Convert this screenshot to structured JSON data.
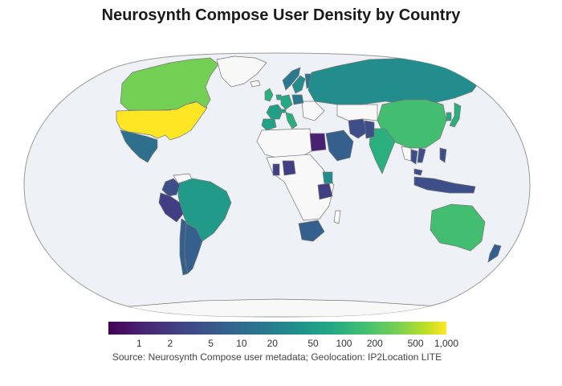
{
  "title": "Neurosynth Compose User Density by Country",
  "source": "Source: Neurosynth Compose user metadata; Geolocation: IP2Location LITE",
  "colorbar": {
    "scale": "log",
    "colorscale": "viridis",
    "range": [
      0.5,
      1000
    ],
    "ticks": [
      "1",
      "2",
      "5",
      "10",
      "20",
      "50",
      "100",
      "200",
      "500",
      "1,000"
    ]
  },
  "colors": {
    "ocean": "#eef1f6",
    "no_data": "#f8f8f8",
    "border": "#777777",
    "low": "#440154",
    "high": "#fde725"
  },
  "chart_data": {
    "type": "choropleth",
    "projection": "natural-earth",
    "value_scale": "log",
    "regions": [
      {
        "name": "United States",
        "value": 1000
      },
      {
        "name": "Canada",
        "value": 200
      },
      {
        "name": "Mexico",
        "value": 8
      },
      {
        "name": "Brazil",
        "value": 30
      },
      {
        "name": "Colombia",
        "value": 3
      },
      {
        "name": "Peru",
        "value": 2
      },
      {
        "name": "Argentina",
        "value": 5
      },
      {
        "name": "Chile",
        "value": 5
      },
      {
        "name": "United Kingdom",
        "value": 60
      },
      {
        "name": "Germany",
        "value": 50
      },
      {
        "name": "France",
        "value": 35
      },
      {
        "name": "Spain",
        "value": 40
      },
      {
        "name": "Italy",
        "value": 60
      },
      {
        "name": "Netherlands",
        "value": 50
      },
      {
        "name": "Switzerland",
        "value": 40
      },
      {
        "name": "Sweden",
        "value": 20
      },
      {
        "name": "Norway",
        "value": 10
      },
      {
        "name": "Finland",
        "value": 10
      },
      {
        "name": "Poland",
        "value": 10
      },
      {
        "name": "Russia",
        "value": 20
      },
      {
        "name": "China",
        "value": 100
      },
      {
        "name": "Japan",
        "value": 60
      },
      {
        "name": "South Korea",
        "value": 50
      },
      {
        "name": "India",
        "value": 60
      },
      {
        "name": "Australia",
        "value": 100
      },
      {
        "name": "New Zealand",
        "value": 5
      },
      {
        "name": "Saudi Arabia",
        "value": 5
      },
      {
        "name": "Egypt",
        "value": 1
      },
      {
        "name": "Nigeria",
        "value": 2
      },
      {
        "name": "Ghana",
        "value": 2
      },
      {
        "name": "Tanzania",
        "value": 2
      },
      {
        "name": "Kenya",
        "value": 20
      },
      {
        "name": "South Africa",
        "value": 5
      },
      {
        "name": "Iran",
        "value": 3
      },
      {
        "name": "Indonesia",
        "value": 3
      },
      {
        "name": "Philippines",
        "value": 3
      },
      {
        "name": "Thailand",
        "value": 3
      },
      {
        "name": "Malaysia",
        "value": 3
      },
      {
        "name": "Vietnam",
        "value": 3
      },
      {
        "name": "Pakistan",
        "value": 3
      },
      {
        "name": "Greenland",
        "value": null
      },
      {
        "name": "Antarctica",
        "value": null
      }
    ]
  }
}
